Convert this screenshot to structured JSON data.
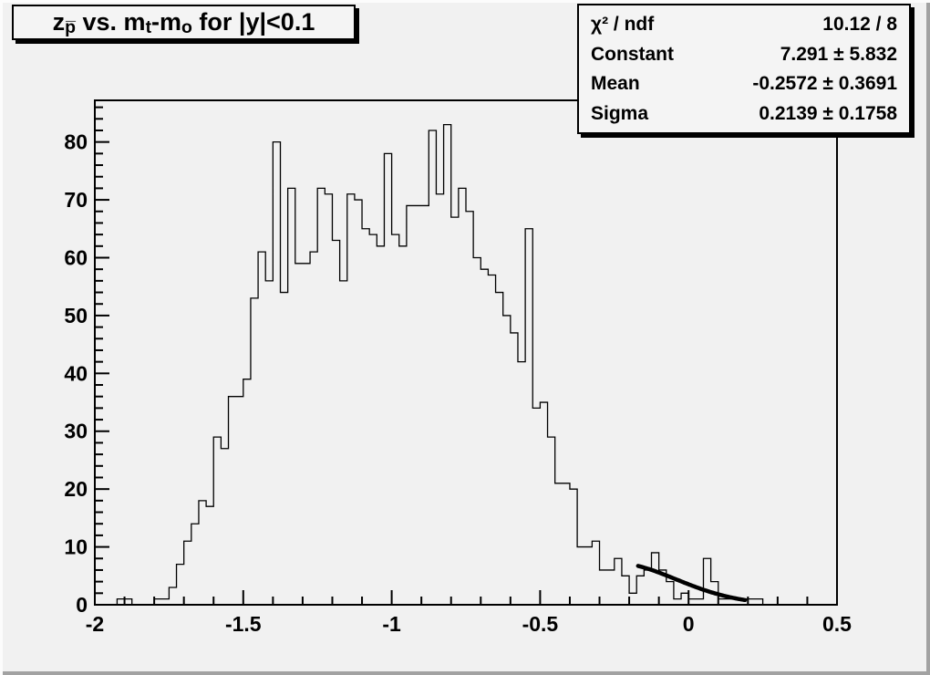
{
  "canvas": {
    "background": "#f1f1f1",
    "pave_background": "#f4f4f4",
    "bevel_light": "#fcfcfc",
    "bevel_dark": "#a2a2a2",
    "line_color": "#000000"
  },
  "title_box": {
    "plain_text": "z_p̅ vs. m_t-m_o for |y|<0.1",
    "segments": [
      {
        "text": "z",
        "style": "normal"
      },
      {
        "text": "p̅",
        "style": "sub"
      },
      {
        "text": " vs. m",
        "style": "normal"
      },
      {
        "text": "t",
        "style": "sub"
      },
      {
        "text": "-m",
        "style": "normal"
      },
      {
        "text": "o",
        "style": "sub"
      },
      {
        "text": " for |y|<0.1",
        "style": "normal"
      }
    ]
  },
  "stats_box": {
    "rows": [
      {
        "label": "χ² / ndf",
        "value": "10.12 / 8"
      },
      {
        "label": "Constant",
        "value": "7.291 ± 5.832"
      },
      {
        "label": "Mean",
        "value": "-0.2572 ± 0.3691"
      },
      {
        "label": "Sigma",
        "value": "0.2139 ± 0.1758"
      }
    ]
  },
  "chart_data": {
    "type": "bar",
    "subtype": "step-histogram",
    "title": "z_p̅ vs. m_t-m_o for |y|<0.1",
    "xlabel": "",
    "ylabel": "",
    "xlim": [
      -2,
      0.5
    ],
    "ylim": [
      0,
      87.2
    ],
    "grid": false,
    "bin_start": -2.0,
    "bin_width": 0.025,
    "values": [
      0,
      0,
      0,
      1,
      1,
      0,
      0,
      0,
      1,
      1,
      3,
      7,
      11,
      14,
      18,
      17,
      29,
      27,
      36,
      36,
      39,
      53,
      61,
      56,
      80,
      54,
      72,
      59,
      59,
      61,
      72,
      71,
      63,
      56,
      71,
      70,
      65,
      64,
      62,
      78,
      64,
      62,
      69,
      69,
      69,
      82,
      71,
      83,
      67,
      72,
      68,
      60,
      58,
      57,
      54,
      50,
      47,
      42,
      65,
      34,
      35,
      29,
      21,
      21,
      20,
      10,
      10,
      11,
      6,
      6,
      8,
      5,
      2,
      5,
      6,
      9,
      6,
      4,
      1,
      2,
      1,
      1,
      8,
      4,
      1,
      1,
      1,
      1,
      1,
      1,
      0,
      0,
      0,
      0,
      0,
      0,
      0,
      0,
      0,
      0
    ],
    "x_ticks": [
      {
        "v": -2,
        "label": "-2"
      },
      {
        "v": -1.5,
        "label": "-1.5"
      },
      {
        "v": -1,
        "label": "-1"
      },
      {
        "v": -0.5,
        "label": "-0.5"
      },
      {
        "v": 0,
        "label": "0"
      },
      {
        "v": 0.5,
        "label": "0.5"
      }
    ],
    "x_minor_step": 0.1,
    "y_ticks": [
      {
        "v": 0,
        "label": "0"
      },
      {
        "v": 10,
        "label": "10"
      },
      {
        "v": 20,
        "label": "20"
      },
      {
        "v": 30,
        "label": "30"
      },
      {
        "v": 40,
        "label": "40"
      },
      {
        "v": 50,
        "label": "50"
      },
      {
        "v": 60,
        "label": "60"
      },
      {
        "v": 70,
        "label": "70"
      },
      {
        "v": 80,
        "label": "80"
      }
    ],
    "y_minor_step": 2,
    "fit": {
      "shape": "gaussian",
      "constant": 7.291,
      "mean": -0.2572,
      "sigma": 0.2139,
      "draw_range": [
        -0.17,
        0.19
      ]
    }
  }
}
